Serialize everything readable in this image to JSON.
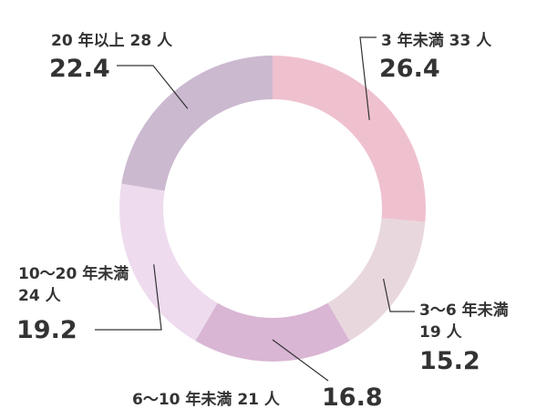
{
  "chart_data": {
    "type": "pie",
    "variant": "donut",
    "title": "",
    "legend": "none",
    "slices": [
      {
        "label": "3 年未満 33 人",
        "label_lines": [
          "3 年未満 33 人"
        ],
        "value": 26.4,
        "color": "#efc1cf"
      },
      {
        "label": "3〜6 年未満 19 人",
        "label_lines": [
          "3〜6 年未満",
          "19 人"
        ],
        "value": 15.2,
        "color": "#e9d7de"
      },
      {
        "label": "6〜10 年未満 21 人",
        "label_lines": [
          "6〜10 年未満 21 人"
        ],
        "value": 16.8,
        "color": "#d9b6d4"
      },
      {
        "label": "10〜20 年未満 24 人",
        "label_lines": [
          "10〜20 年未満",
          "24 人"
        ],
        "value": 19.2,
        "color": "#eedbee"
      },
      {
        "label": "20 年以上 28 人",
        "label_lines": [
          "20 年以上 28 人"
        ],
        "value": 22.4,
        "color": "#cbb9d0"
      }
    ]
  }
}
